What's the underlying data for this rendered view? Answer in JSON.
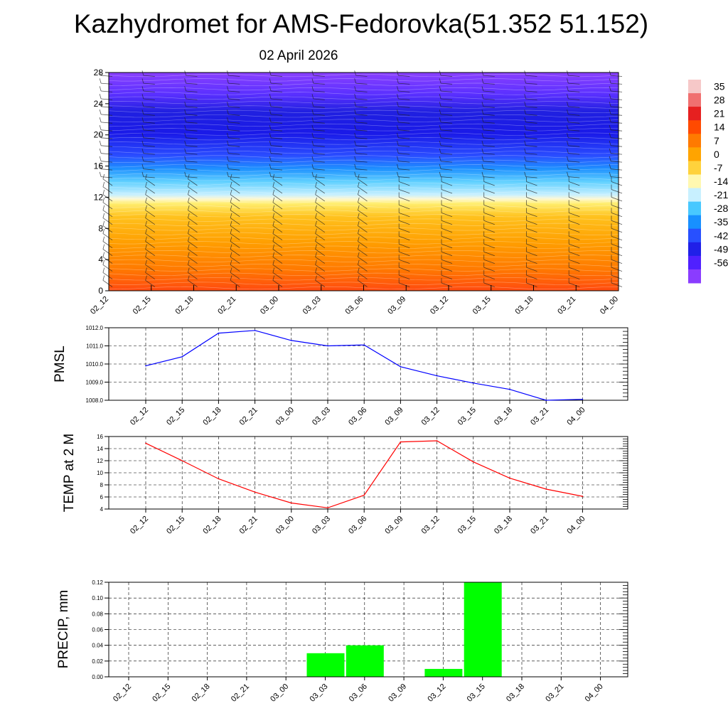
{
  "title": "Kazhydromet for AMS-Fedorovka(51.352 51.152)",
  "subtitle": "02 April 2026",
  "colors": {
    "pmsl_line": "#0000ff",
    "temp_line": "#ff0000",
    "precip_bar": "#00ff00",
    "grid": "#000000"
  },
  "chart_data": [
    {
      "type": "heatmap",
      "name": "temperature-height-section",
      "x_categories": [
        "02_12",
        "02_15",
        "02_18",
        "02_21",
        "03_00",
        "03_03",
        "03_06",
        "03_09",
        "03_12",
        "03_15",
        "03_18",
        "03_21",
        "04_00"
      ],
      "ylim": [
        0,
        28
      ],
      "y_ticks": [
        "0",
        "4",
        "8",
        "12",
        "16",
        "20",
        "24",
        "28"
      ],
      "colorbar_labels": [
        "35",
        "28",
        "21",
        "14",
        "7",
        "0",
        "-7",
        "-14",
        "-21",
        "-28",
        "-35",
        "-42",
        "-49",
        "-56"
      ],
      "colorbar_colors": [
        "#f6c8c8",
        "#f07070",
        "#e62020",
        "#ff4a00",
        "#ff7a00",
        "#ffa400",
        "#ffd23c",
        "#fff8b0",
        "#c8f0ff",
        "#48c8ff",
        "#1890ff",
        "#2850ff",
        "#2020e8",
        "#5020ff",
        "#8a3cff"
      ]
    },
    {
      "type": "line",
      "name": "pmsl",
      "ylabel": "PMSL",
      "x_categories": [
        "02_12",
        "02_15",
        "02_18",
        "02_21",
        "03_00",
        "03_03",
        "03_06",
        "03_09",
        "03_12",
        "03_15",
        "03_18",
        "03_21",
        "04_00"
      ],
      "values": [
        1009.9,
        1010.4,
        1011.7,
        1011.85,
        1011.3,
        1011.0,
        1011.05,
        1009.85,
        1009.35,
        1008.95,
        1008.6,
        1008.0,
        1008.05
      ],
      "ylim": [
        1008.0,
        1012.0
      ],
      "y_ticks": [
        "1008.0",
        "1009.0",
        "1010.0",
        "1011.0",
        "1012.0"
      ]
    },
    {
      "type": "line",
      "name": "temp-2m",
      "ylabel": "TEMP at 2 M",
      "x_categories": [
        "02_12",
        "02_15",
        "02_18",
        "02_21",
        "03_00",
        "03_03",
        "03_06",
        "03_09",
        "03_12",
        "03_15",
        "03_18",
        "03_21",
        "04_00"
      ],
      "values": [
        14.9,
        12.0,
        9.0,
        6.8,
        5.0,
        4.2,
        6.3,
        15.1,
        15.3,
        11.8,
        9.1,
        7.3,
        6.1
      ],
      "ylim": [
        4,
        16
      ],
      "y_ticks": [
        "4",
        "6",
        "8",
        "10",
        "12",
        "14",
        "16"
      ]
    },
    {
      "type": "bar",
      "name": "precip",
      "ylabel": "PRECIP, mm",
      "x_categories": [
        "02_12",
        "02_15",
        "02_18",
        "02_21",
        "03_00",
        "03_03",
        "03_06",
        "03_09",
        "03_12",
        "03_15",
        "03_18",
        "03_21",
        "04_00"
      ],
      "values": [
        0,
        0,
        0,
        0,
        0,
        0.03,
        0.04,
        0,
        0.01,
        0.12,
        0,
        0,
        0
      ],
      "ylim": [
        0,
        0.12
      ],
      "y_ticks": [
        "0.00",
        "0.02",
        "0.04",
        "0.06",
        "0.08",
        "0.10",
        "0.12"
      ]
    }
  ]
}
